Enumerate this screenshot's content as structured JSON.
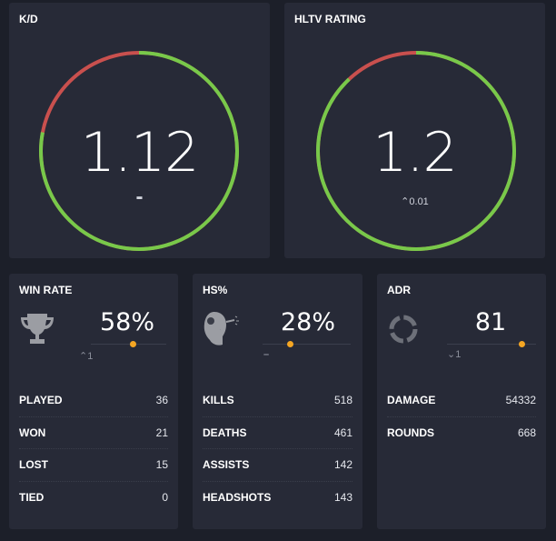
{
  "kd": {
    "title": "K/D",
    "value": "1.12",
    "delta": "-",
    "ring_green_fraction": 0.78,
    "colors": {
      "good": "#78c94a",
      "bad": "#c9504e"
    }
  },
  "hltv": {
    "title": "HLTV RATING",
    "value": "1.2",
    "delta_icon": "chevron-up-icon",
    "delta": "0.01",
    "ring_green_fraction": 0.88
  },
  "winrate": {
    "title": "WIN RATE",
    "icon": "trophy-icon",
    "value": "58%",
    "slider_percent": 55,
    "trend_icon": "chevron-up-icon",
    "trend": "1",
    "rows": [
      {
        "label": "PLAYED",
        "value": "36"
      },
      {
        "label": "WON",
        "value": "21"
      },
      {
        "label": "LOST",
        "value": "15"
      },
      {
        "label": "TIED",
        "value": "0"
      }
    ]
  },
  "hs": {
    "title": "HS%",
    "icon": "headshot-icon",
    "value": "28%",
    "slider_percent": 31,
    "trend": "–",
    "rows": [
      {
        "label": "KILLS",
        "value": "518"
      },
      {
        "label": "DEATHS",
        "value": "461"
      },
      {
        "label": "ASSISTS",
        "value": "142"
      },
      {
        "label": "HEADSHOTS",
        "value": "143"
      }
    ]
  },
  "adr": {
    "title": "ADR",
    "icon": "crosshair-ring-icon",
    "value": "81",
    "slider_percent": 84,
    "trend_icon": "chevron-down-icon",
    "trend": "1",
    "rows": [
      {
        "label": "DAMAGE",
        "value": "54332"
      },
      {
        "label": "ROUNDS",
        "value": "668"
      }
    ]
  },
  "accent": "#f5a623"
}
